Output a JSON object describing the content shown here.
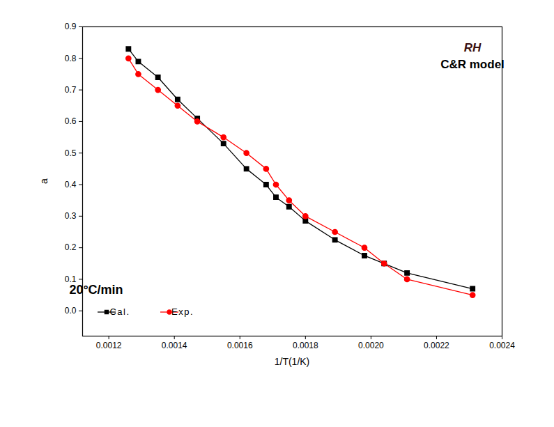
{
  "chart_data": {
    "type": "line",
    "x_label": "1/T(1/K)",
    "y_label": "a",
    "annotations": [
      "RH",
      "C&R model",
      "20°C/min"
    ],
    "x": [
      0.00126,
      0.00129,
      0.00135,
      0.00141,
      0.00147,
      0.00155,
      0.00162,
      0.00168,
      0.00171,
      0.00175,
      0.0018,
      0.00189,
      0.00198,
      0.00204,
      0.00211,
      0.00231
    ],
    "series": [
      {
        "name": "Cal.",
        "color": "#000000",
        "marker": "square",
        "line_style": "solid",
        "values": [
          0.83,
          0.79,
          0.74,
          0.67,
          0.61,
          0.53,
          0.45,
          0.4,
          0.36,
          0.33,
          0.285,
          0.225,
          0.175,
          0.15,
          0.12,
          0.07
        ]
      },
      {
        "name": "Exp.",
        "color": "#ff0000",
        "marker": "circle",
        "line_style": "solid",
        "values": [
          0.8,
          0.75,
          0.7,
          0.65,
          0.6,
          0.55,
          0.5,
          0.45,
          0.4,
          0.35,
          0.3,
          0.25,
          0.2,
          0.15,
          0.1,
          0.05
        ]
      }
    ],
    "xlim": [
      0.00112,
      0.0024
    ],
    "xticks": [
      0.0012,
      0.0014,
      0.0016,
      0.0018,
      {
        "value": 0.002,
        "label": "0.0020"
      },
      0.0022,
      0.0024
    ],
    "ylim": [
      -0.08,
      0.9
    ],
    "yticks": [
      {
        "value": 0,
        "label": "0.0"
      },
      0.1,
      0.2,
      0.3,
      0.4,
      0.5,
      0.6,
      0.7,
      0.8,
      0.9
    ],
    "legend": "bottom-left",
    "grid": false
  }
}
